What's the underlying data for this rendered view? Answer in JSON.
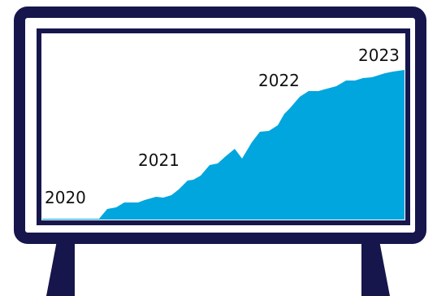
{
  "illustration": {
    "colors": {
      "frame": "#16164d",
      "area": "#00a6dd",
      "screen": "#ffffff"
    },
    "labels": {
      "y2020": "2020",
      "y2021": "2021",
      "y2022": "2022",
      "y2023": "2023"
    }
  }
}
